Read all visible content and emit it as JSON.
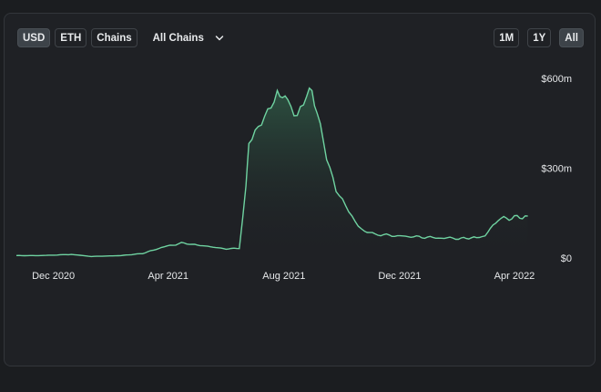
{
  "currency_toggle": [
    {
      "label": "USD",
      "active": true
    },
    {
      "label": "ETH",
      "active": false
    },
    {
      "label": "Chains",
      "active": false
    }
  ],
  "chain_filter": {
    "selected": "All Chains",
    "icon": "chevron-down-icon"
  },
  "range_toggle": [
    {
      "label": "1M",
      "active": false
    },
    {
      "label": "1Y",
      "active": false
    },
    {
      "label": "All",
      "active": true
    }
  ],
  "colors": {
    "line": "#6fd3a1",
    "fill_top": "#2f5a46",
    "fill_bottom": "#1f2125"
  },
  "chart_data": {
    "type": "area",
    "x_ticks": [
      "Dec 2020",
      "Apr 2021",
      "Aug 2021",
      "Dec 2021",
      "Apr 2022"
    ],
    "y_ticks": [
      "$600m",
      "$300m",
      "$0"
    ],
    "ylim": [
      0,
      600
    ],
    "xlim": [
      "2020-10-23",
      "2022-04-25"
    ],
    "series": [
      {
        "x": [
          "2020-10-23",
          "2020-11-15",
          "2020-12-05",
          "2020-12-20",
          "2021-01-10",
          "2021-02-10",
          "2021-03-05",
          "2021-03-25",
          "2021-04-15",
          "2021-05-10",
          "2021-06-01",
          "2021-06-15",
          "2021-06-22",
          "2021-06-25",
          "2021-07-05",
          "2021-07-15",
          "2021-07-25",
          "2021-08-05",
          "2021-08-15",
          "2021-08-25",
          "2021-09-05",
          "2021-09-15",
          "2021-09-25",
          "2021-10-05",
          "2021-10-15",
          "2021-10-25",
          "2021-11-05",
          "2021-11-20",
          "2021-12-10",
          "2022-01-05",
          "2022-02-01",
          "2022-02-20",
          "2022-03-01",
          "2022-03-15",
          "2022-04-01",
          "2022-04-15"
        ],
        "y": [
          8,
          8,
          10,
          12,
          5,
          8,
          15,
          35,
          50,
          40,
          30,
          33,
          240,
          380,
          420,
          480,
          560,
          520,
          490,
          560,
          510,
          340,
          220,
          170,
          120,
          90,
          80,
          75,
          72,
          68,
          65,
          68,
          75,
          130,
          135,
          140
        ]
      }
    ]
  }
}
